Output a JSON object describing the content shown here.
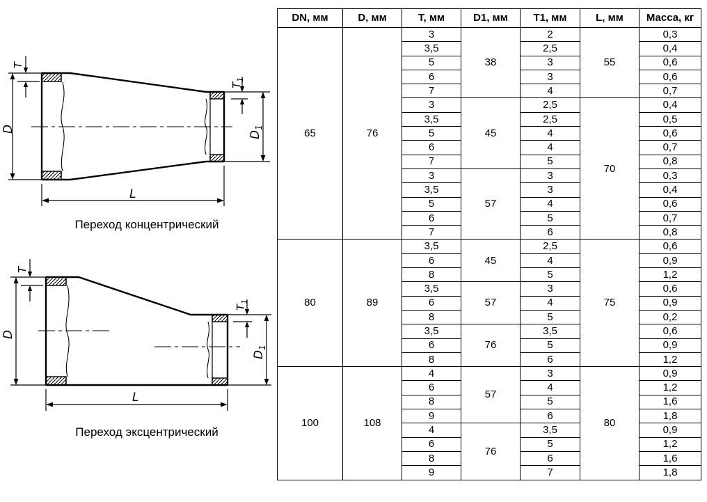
{
  "diagrams": {
    "labels": {
      "T": "T",
      "D": "D",
      "L": "L",
      "T1_base": "T",
      "T1_sub": "1",
      "D1_base": "D",
      "D1_sub": "1"
    },
    "concentric": {
      "caption": "Переход концентрический"
    },
    "eccentric": {
      "caption": "Переход эксцентрический"
    }
  },
  "table": {
    "headers": [
      "DN, мм",
      "D, мм",
      "T, мм",
      "D1, мм",
      "T1, мм",
      "L, мм",
      "Масса, кг"
    ],
    "rows": [
      [
        {
          "v": "65",
          "rs": 15
        },
        {
          "v": "76",
          "rs": 15
        },
        {
          "v": "3"
        },
        {
          "v": "38",
          "rs": 5
        },
        {
          "v": "2"
        },
        {
          "v": "55",
          "rs": 5
        },
        {
          "v": "0,3"
        }
      ],
      [
        {
          "v": "3,5"
        },
        {
          "v": "2,5"
        },
        {
          "v": "0,4"
        }
      ],
      [
        {
          "v": "5"
        },
        {
          "v": "3"
        },
        {
          "v": "0,6"
        }
      ],
      [
        {
          "v": "6"
        },
        {
          "v": "3"
        },
        {
          "v": "0,6"
        }
      ],
      [
        {
          "v": "7"
        },
        {
          "v": "4"
        },
        {
          "v": "0,7"
        }
      ],
      [
        {
          "v": "3"
        },
        {
          "v": "45",
          "rs": 5
        },
        {
          "v": "2,5"
        },
        {
          "v": "70",
          "rs": 10
        },
        {
          "v": "0,4"
        }
      ],
      [
        {
          "v": "3,5"
        },
        {
          "v": "2,5"
        },
        {
          "v": "0,5"
        }
      ],
      [
        {
          "v": "5"
        },
        {
          "v": "4"
        },
        {
          "v": "0,6"
        }
      ],
      [
        {
          "v": "6"
        },
        {
          "v": "4"
        },
        {
          "v": "0,7"
        }
      ],
      [
        {
          "v": "7"
        },
        {
          "v": "5"
        },
        {
          "v": "0,8"
        }
      ],
      [
        {
          "v": "3"
        },
        {
          "v": "57",
          "rs": 5
        },
        {
          "v": "3"
        },
        {
          "v": "0,3"
        }
      ],
      [
        {
          "v": "3,5"
        },
        {
          "v": "3"
        },
        {
          "v": "0,4"
        }
      ],
      [
        {
          "v": "5"
        },
        {
          "v": "4"
        },
        {
          "v": "0,6"
        }
      ],
      [
        {
          "v": "6"
        },
        {
          "v": "5"
        },
        {
          "v": "0,7"
        }
      ],
      [
        {
          "v": "7"
        },
        {
          "v": "6"
        },
        {
          "v": "0,8"
        }
      ],
      [
        {
          "v": "80",
          "rs": 9
        },
        {
          "v": "89",
          "rs": 9
        },
        {
          "v": "3,5"
        },
        {
          "v": "45",
          "rs": 3
        },
        {
          "v": "2,5"
        },
        {
          "v": "75",
          "rs": 9
        },
        {
          "v": "0,6"
        }
      ],
      [
        {
          "v": "6"
        },
        {
          "v": "4"
        },
        {
          "v": "0,9"
        }
      ],
      [
        {
          "v": "8"
        },
        {
          "v": "5"
        },
        {
          "v": "1,2"
        }
      ],
      [
        {
          "v": "3,5"
        },
        {
          "v": "57",
          "rs": 3
        },
        {
          "v": "3"
        },
        {
          "v": "0,6"
        }
      ],
      [
        {
          "v": "6"
        },
        {
          "v": "4"
        },
        {
          "v": "0,9"
        }
      ],
      [
        {
          "v": "8"
        },
        {
          "v": "5"
        },
        {
          "v": "0,2"
        }
      ],
      [
        {
          "v": "3,5"
        },
        {
          "v": "76",
          "rs": 3
        },
        {
          "v": "3,5"
        },
        {
          "v": "0,6"
        }
      ],
      [
        {
          "v": "6"
        },
        {
          "v": "5"
        },
        {
          "v": "0,9"
        }
      ],
      [
        {
          "v": "8"
        },
        {
          "v": "6"
        },
        {
          "v": "1,2"
        }
      ],
      [
        {
          "v": "100",
          "rs": 8
        },
        {
          "v": "108",
          "rs": 8
        },
        {
          "v": "4"
        },
        {
          "v": "57",
          "rs": 4
        },
        {
          "v": "3"
        },
        {
          "v": "80",
          "rs": 8
        },
        {
          "v": "0,9"
        }
      ],
      [
        {
          "v": "6"
        },
        {
          "v": "4"
        },
        {
          "v": "1,2"
        }
      ],
      [
        {
          "v": "8"
        },
        {
          "v": "5"
        },
        {
          "v": "1,6"
        }
      ],
      [
        {
          "v": "9"
        },
        {
          "v": "6"
        },
        {
          "v": "1,8"
        }
      ],
      [
        {
          "v": "4"
        },
        {
          "v": "76",
          "rs": 4
        },
        {
          "v": "3,5"
        },
        {
          "v": "0,9"
        }
      ],
      [
        {
          "v": "6"
        },
        {
          "v": "5"
        },
        {
          "v": "1,2"
        }
      ],
      [
        {
          "v": "8"
        },
        {
          "v": "6"
        },
        {
          "v": "1,6"
        }
      ],
      [
        {
          "v": "9"
        },
        {
          "v": "7"
        },
        {
          "v": "1,8"
        }
      ]
    ]
  }
}
